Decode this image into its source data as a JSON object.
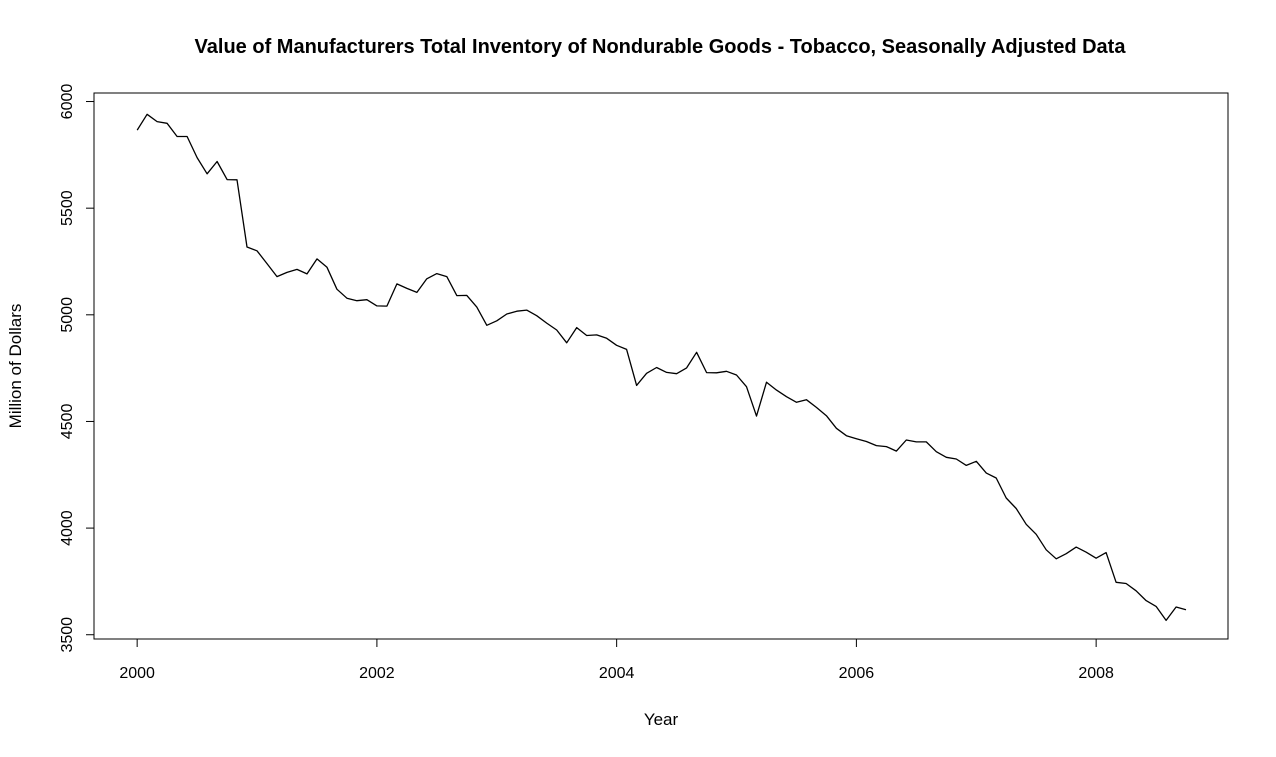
{
  "chart_data": {
    "type": "line",
    "title": "Value of Manufacturers Total Inventory of Nondurable Goods - Tobacco, Seasonally Adjusted Data",
    "xlabel": "Year",
    "ylabel": "Million of Dollars",
    "xlim": [
      1999.64,
      2009.1
    ],
    "ylim": [
      3480,
      6040
    ],
    "x_ticks": [
      2000,
      2002,
      2004,
      2006,
      2008
    ],
    "y_ticks": [
      3500,
      4000,
      4500,
      5000,
      5500,
      6000
    ],
    "grid": false,
    "legend": "none",
    "x_start": "2000-01",
    "x_frequency": "monthly",
    "series": [
      {
        "values": [
          5866,
          5940,
          5906,
          5898,
          5836,
          5836,
          5737,
          5661,
          5719,
          5634,
          5633,
          5318,
          5300,
          5240,
          5179,
          5199,
          5213,
          5192,
          5262,
          5223,
          5120,
          5078,
          5066,
          5071,
          5042,
          5041,
          5145,
          5124,
          5105,
          5169,
          5193,
          5179,
          5090,
          5091,
          5036,
          4951,
          4972,
          5004,
          5017,
          5022,
          4996,
          4961,
          4929,
          4869,
          4940,
          4903,
          4906,
          4890,
          4857,
          4838,
          4669,
          4726,
          4753,
          4730,
          4724,
          4751,
          4824,
          4729,
          4728,
          4735,
          4718,
          4663,
          4525,
          4684,
          4647,
          4616,
          4590,
          4602,
          4566,
          4527,
          4468,
          4433,
          4419,
          4406,
          4387,
          4382,
          4361,
          4413,
          4404,
          4404,
          4358,
          4332,
          4324,
          4294,
          4313,
          4258,
          4235,
          4141,
          4092,
          4018,
          3971,
          3898,
          3856,
          3880,
          3911,
          3887,
          3859,
          3885,
          3746,
          3740,
          3706,
          3660,
          3633,
          3567,
          3630,
          3617
        ]
      }
    ]
  }
}
